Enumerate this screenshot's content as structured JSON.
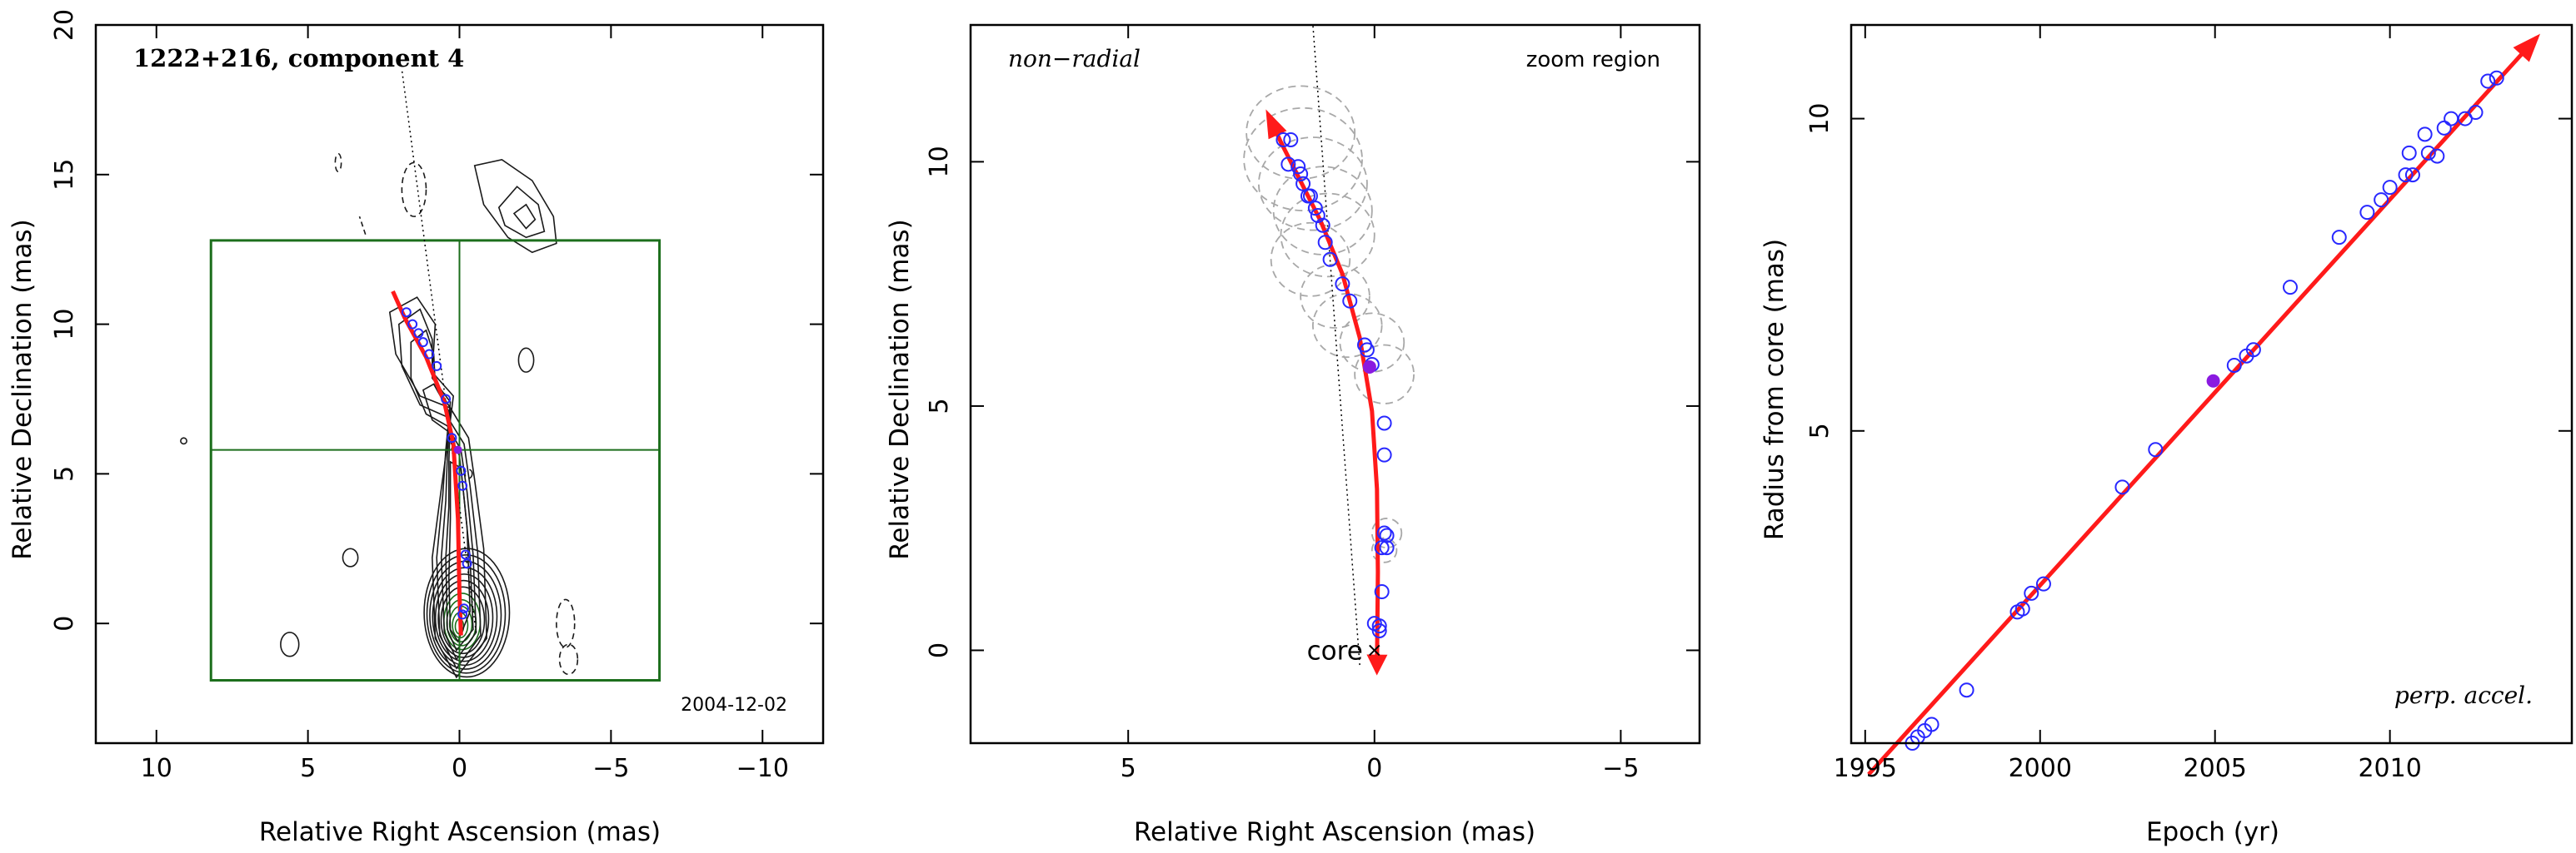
{
  "figure": {
    "colors": {
      "frame": "#000000",
      "contour": "#1a1a1a",
      "zoom_box": "#1c6e1c",
      "fit_curve": "#ff1a1a",
      "points": "#2828ff",
      "filled_point": "#8a1ae0",
      "ghost_ellipses": "#a8a8a8",
      "ridge": "#000000"
    }
  },
  "chart_data": [
    {
      "type": "contour-map",
      "title": "1222+216, component 4",
      "annotation_date": "2004-12-02",
      "xlabel": "Relative Right Ascension (mas)",
      "ylabel": "Relative Declination (mas)",
      "xlim": [
        12,
        -12
      ],
      "ylim": [
        -4,
        20
      ],
      "xticks": [
        "10",
        "5",
        "0",
        "−5",
        "−10"
      ],
      "xtick_values": [
        10,
        5,
        0,
        -5,
        -10
      ],
      "yticks": [
        "0",
        "5",
        "10",
        "15",
        "20"
      ],
      "ytick_values": [
        0,
        5,
        10,
        15,
        20
      ],
      "zoom_box": {
        "x": [
          8.2,
          -6.6
        ],
        "y": [
          -1.9,
          12.8
        ]
      },
      "crosshair": {
        "x": 0.0,
        "y": 5.8
      },
      "fit_path": [
        [
          2.2,
          11.1
        ],
        [
          1.8,
          10.2
        ],
        [
          1.1,
          8.9
        ],
        [
          0.5,
          7.4
        ],
        [
          0.2,
          6.0
        ],
        [
          0.05,
          3.5
        ],
        [
          0.0,
          1.0
        ],
        [
          -0.05,
          -0.4
        ]
      ],
      "points": [
        [
          1.75,
          10.4
        ],
        [
          1.55,
          10.0
        ],
        [
          1.35,
          9.7
        ],
        [
          1.2,
          9.4
        ],
        [
          1.0,
          9.0
        ],
        [
          0.75,
          8.6
        ],
        [
          0.45,
          7.5
        ],
        [
          0.25,
          6.2
        ],
        [
          -0.05,
          5.1
        ],
        [
          -0.1,
          4.6
        ],
        [
          -0.2,
          2.3
        ],
        [
          -0.25,
          2.0
        ],
        [
          -0.15,
          0.5
        ],
        [
          -0.1,
          0.3
        ]
      ],
      "filled_point": [
        0.05,
        5.8
      ],
      "ridge_line": [
        [
          -0.55,
          -0.3
        ],
        [
          1.9,
          18.5
        ]
      ]
    },
    {
      "type": "scatter",
      "labels": {
        "top_left": "non−radial",
        "top_right": "zoom region",
        "core": "core"
      },
      "xlabel": "Relative Right Ascension (mas)",
      "ylabel": "Relative Declination (mas)",
      "xlim": [
        8.2,
        -6.6
      ],
      "ylim": [
        -1.9,
        12.8
      ],
      "xticks": [
        "5",
        "0",
        "−5"
      ],
      "xtick_values": [
        5,
        0,
        -5
      ],
      "yticks": [
        "0",
        "5",
        "10"
      ],
      "ytick_values": [
        0,
        5,
        10
      ],
      "fit_path": [
        [
          2.15,
          10.95
        ],
        [
          1.9,
          10.4
        ],
        [
          1.55,
          9.7
        ],
        [
          1.1,
          8.8
        ],
        [
          0.65,
          7.7
        ],
        [
          0.3,
          6.4
        ],
        [
          0.05,
          4.9
        ],
        [
          -0.05,
          3.3
        ],
        [
          -0.07,
          1.6
        ],
        [
          -0.05,
          -0.3
        ]
      ],
      "points": [
        [
          1.7,
          10.45
        ],
        [
          1.85,
          10.45
        ],
        [
          1.75,
          9.95
        ],
        [
          1.55,
          9.9
        ],
        [
          1.5,
          9.75
        ],
        [
          1.45,
          9.55
        ],
        [
          1.3,
          9.3
        ],
        [
          1.35,
          9.3
        ],
        [
          1.2,
          9.05
        ],
        [
          1.15,
          8.9
        ],
        [
          1.05,
          8.7
        ],
        [
          1.0,
          8.35
        ],
        [
          0.9,
          8.0
        ],
        [
          0.65,
          7.5
        ],
        [
          0.5,
          7.15
        ],
        [
          0.2,
          6.25
        ],
        [
          0.15,
          6.15
        ],
        [
          0.05,
          5.85
        ],
        [
          -0.2,
          4.65
        ],
        [
          -0.2,
          4.0
        ],
        [
          -0.2,
          2.4
        ],
        [
          -0.25,
          2.35
        ],
        [
          -0.25,
          2.1
        ],
        [
          -0.15,
          2.1
        ],
        [
          -0.15,
          1.2
        ],
        [
          -0.1,
          0.5
        ],
        [
          -0.1,
          0.4
        ],
        [
          0.0,
          0.55
        ]
      ],
      "filled_point": [
        0.1,
        5.8
      ],
      "ridge_line": [
        [
          0.3,
          -0.3
        ],
        [
          1.25,
          12.8
        ]
      ],
      "core_marker": [
        0.0,
        0.0
      ],
      "ellipses": [
        [
          1.5,
          10.6,
          1.1,
          0.95
        ],
        [
          1.45,
          10.05,
          1.2,
          1.05
        ],
        [
          1.25,
          9.55,
          1.1,
          0.95
        ],
        [
          1.05,
          9.0,
          1.0,
          0.9
        ],
        [
          0.95,
          8.5,
          0.95,
          0.85
        ],
        [
          1.3,
          8.0,
          0.8,
          0.75
        ],
        [
          0.8,
          7.25,
          0.7,
          0.65
        ],
        [
          0.55,
          6.65,
          0.7,
          0.65
        ],
        [
          0.05,
          6.3,
          0.65,
          0.6
        ],
        [
          -0.2,
          5.65,
          0.6,
          0.6
        ],
        [
          -0.25,
          2.4,
          0.3,
          0.3
        ],
        [
          -0.2,
          2.05,
          0.25,
          0.25
        ]
      ]
    },
    {
      "type": "scatter",
      "labels": {
        "bottom_right": "perp. accel."
      },
      "xlabel": "Epoch (yr)",
      "ylabel": "Radius from core (mas)",
      "xlim": [
        1994.6,
        2015.2
      ],
      "ylim": [
        0,
        11.5
      ],
      "xticks": [
        "1995",
        "2000",
        "2005",
        "2010"
      ],
      "xtick_values": [
        1995,
        2000,
        2005,
        2010
      ],
      "yticks": [
        "5",
        "10"
      ],
      "ytick_values": [
        5,
        10
      ],
      "fit_line": [
        [
          1995.1,
          -0.5
        ],
        [
          2014.2,
          11.3
        ]
      ],
      "points": [
        [
          1996.35,
          0.0
        ],
        [
          1996.5,
          0.1
        ],
        [
          1996.7,
          0.2
        ],
        [
          1996.9,
          0.3
        ],
        [
          1997.9,
          0.85
        ],
        [
          1999.35,
          2.1
        ],
        [
          1999.5,
          2.15
        ],
        [
          1999.75,
          2.4
        ],
        [
          2000.1,
          2.55
        ],
        [
          2002.35,
          4.1
        ],
        [
          2003.3,
          4.7
        ],
        [
          2005.55,
          6.05
        ],
        [
          2005.9,
          6.2
        ],
        [
          2006.1,
          6.3
        ],
        [
          2007.15,
          7.3
        ],
        [
          2008.55,
          8.1
        ],
        [
          2009.35,
          8.5
        ],
        [
          2009.75,
          8.7
        ],
        [
          2010.0,
          8.9
        ],
        [
          2010.45,
          9.1
        ],
        [
          2010.55,
          9.45
        ],
        [
          2010.65,
          9.1
        ],
        [
          2011.0,
          9.75
        ],
        [
          2011.1,
          9.45
        ],
        [
          2011.35,
          9.4
        ],
        [
          2011.55,
          9.85
        ],
        [
          2011.75,
          10.0
        ],
        [
          2012.15,
          10.0
        ],
        [
          2012.45,
          10.1
        ],
        [
          2012.8,
          10.6
        ],
        [
          2013.05,
          10.65
        ]
      ],
      "filled_point": [
        2004.95,
        5.8
      ]
    }
  ]
}
